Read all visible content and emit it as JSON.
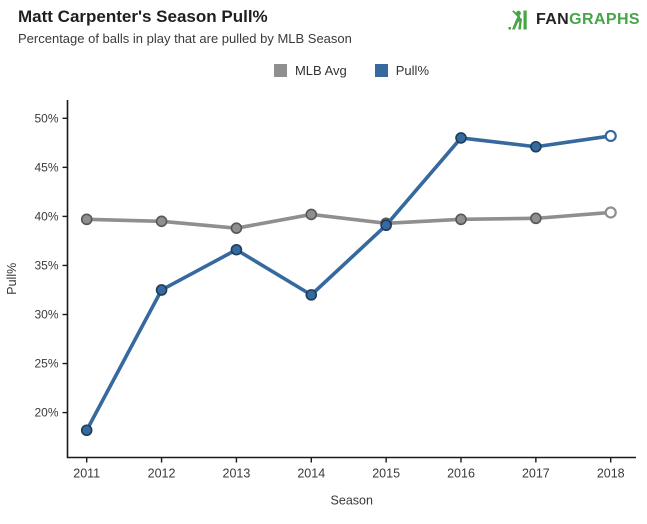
{
  "header": {
    "title": "Matt Carpenter's Season Pull%",
    "subtitle": "Percentage of balls in play that are pulled by MLB Season"
  },
  "logo": {
    "fan": "FAN",
    "graphs": "GRAPHS",
    "green": "#45a547",
    "dark": "#232323"
  },
  "chart_data": {
    "type": "line",
    "title": "Matt Carpenter's Season Pull%",
    "subtitle": "Percentage of balls in play that are pulled by MLB Season",
    "xlabel": "Season",
    "ylabel": "Pull%",
    "categories": [
      "2011",
      "2012",
      "2013",
      "2014",
      "2015",
      "2016",
      "2017",
      "2018"
    ],
    "y_ticks": [
      20,
      25,
      30,
      35,
      40,
      45,
      50
    ],
    "y_tick_suffix": "%",
    "ylim": [
      15.5,
      51.9
    ],
    "grid": false,
    "legend_position": "top-center",
    "axis_color": "#1a1a1a",
    "tick_label_color": "#3a3a3a",
    "series": [
      {
        "name": "MLB Avg",
        "color": "#8f8f8f",
        "marker_edge": "#575757",
        "values": [
          39.7,
          39.5,
          38.8,
          40.2,
          39.3,
          39.7,
          39.8,
          40.4
        ],
        "last_point_open": true
      },
      {
        "name": "Pull%",
        "color": "#36699e",
        "marker_edge": "#1d3d5c",
        "values": [
          18.2,
          32.5,
          36.6,
          32.0,
          39.1,
          48.0,
          47.1,
          48.2
        ],
        "last_point_open": true
      }
    ]
  }
}
